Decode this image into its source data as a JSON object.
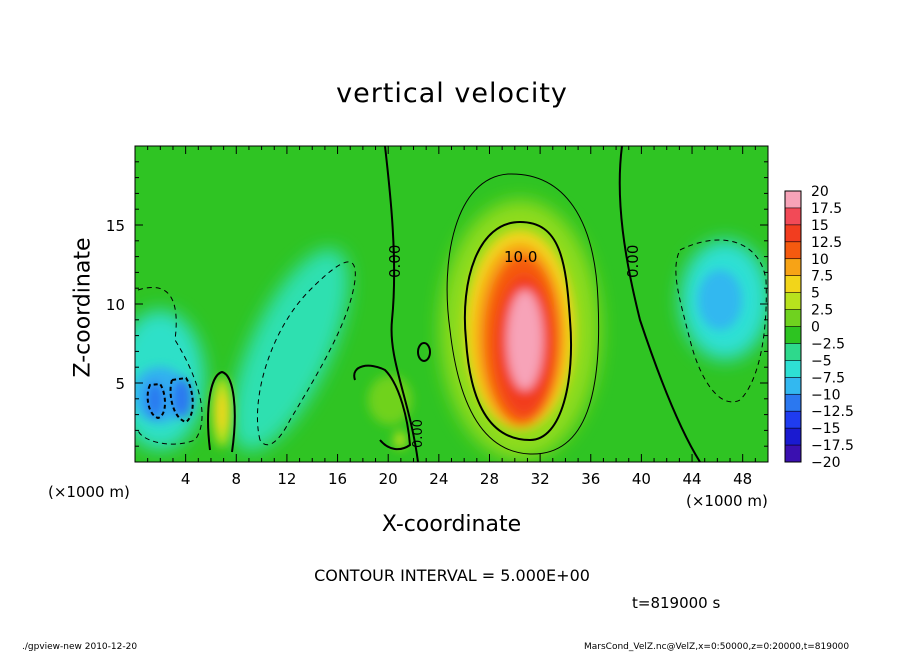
{
  "chart_data": {
    "type": "heatmap",
    "title": "vertical velocity",
    "xlabel": "X-coordinate",
    "ylabel": "Z-coordinate",
    "x_unit": "(×1000 m)",
    "z_unit": "(×1000 m)",
    "xlim": [
      0,
      50
    ],
    "ylim": [
      0,
      20
    ],
    "x_ticks": [
      4,
      8,
      12,
      16,
      20,
      24,
      28,
      32,
      36,
      40,
      44,
      48
    ],
    "y_ticks": [
      5,
      10,
      15
    ],
    "colorbar_levels": [
      20,
      17.5,
      15,
      12.5,
      10,
      7.5,
      5,
      2.5,
      0,
      -2.5,
      -5,
      -7.5,
      -10,
      -12.5,
      -15,
      -17.5,
      -20
    ],
    "colorbar_colors": [
      "#f7a3b8",
      "#f24a57",
      "#f23d1f",
      "#f55a0f",
      "#f7a316",
      "#f2d51a",
      "#b8e21d",
      "#6fd21f",
      "#2dc421",
      "#2ed98c",
      "#2ee0d4",
      "#33b8f0",
      "#2b78f0",
      "#1f3cf0",
      "#1a1ad0",
      "#3a10b0"
    ],
    "contour_interval_text": "CONTOUR INTERVAL = 5.000E+00",
    "contour_labels": [
      "10.0",
      "0.00",
      "0.00",
      "0.00"
    ],
    "time_label": "t=819000 s",
    "features": [
      {
        "type": "updraft",
        "x": 30.5,
        "z": 8,
        "max": 20
      },
      {
        "type": "downdraft",
        "x": 3.5,
        "z": 4,
        "min": -12.5
      },
      {
        "type": "downdraft",
        "x": 47,
        "z": 9,
        "min": -7.5
      },
      {
        "type": "downdraft",
        "x": 12,
        "z": 7,
        "min": -5
      },
      {
        "type": "updraft",
        "x": 6.5,
        "z": 3.5,
        "max": 7.5
      }
    ]
  },
  "footer": {
    "left": "./gpview-new  2010-12-20",
    "right": "MarsCond_VelZ.nc@VelZ,x=0:50000,z=0:20000,t=819000"
  }
}
